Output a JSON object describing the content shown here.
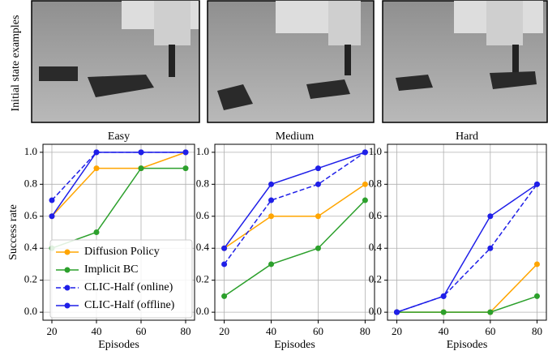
{
  "photos_label": "Initial state examples",
  "chart_data": [
    {
      "type": "line",
      "title": "Easy",
      "xlabel": "Episodes",
      "ylabel": "Success rate",
      "x": [
        20,
        40,
        60,
        80
      ],
      "xlim": [
        16,
        84
      ],
      "ylim": [
        -0.05,
        1.05
      ],
      "xticks": [
        20,
        40,
        60,
        80
      ],
      "yticks": [
        {
          "value": 0,
          "label": "0.0"
        },
        {
          "value": 0.2,
          "label": "0.2"
        },
        {
          "value": 0.4,
          "label": "0.4"
        },
        {
          "value": 0.6,
          "label": "0.6"
        },
        {
          "value": 0.8,
          "label": "0.8"
        },
        {
          "value": 1,
          "label": "1.0"
        }
      ],
      "grid": true,
      "legend": "lower right",
      "series": [
        {
          "name": "Diffusion Policy",
          "color": "#ffa500",
          "linestyle": "solid",
          "values": [
            0.6,
            0.9,
            0.9,
            1.0
          ]
        },
        {
          "name": "Implicit BC",
          "color": "#2ca02c",
          "linestyle": "solid",
          "values": [
            0.4,
            0.5,
            0.9,
            0.9
          ]
        },
        {
          "name": "CLIC-Half (online)",
          "color": "#1f1fe8",
          "linestyle": "dashed",
          "values": [
            0.7,
            1.0,
            1.0,
            1.0
          ]
        },
        {
          "name": "CLIC-Half (offline)",
          "color": "#1f1fe8",
          "linestyle": "solid",
          "values": [
            0.6,
            1.0,
            1.0,
            1.0
          ]
        }
      ]
    },
    {
      "type": "line",
      "title": "Medium",
      "xlabel": "Episodes",
      "x": [
        20,
        40,
        60,
        80
      ],
      "xlim": [
        16,
        84
      ],
      "ylim": [
        -0.05,
        1.05
      ],
      "xticks": [
        20,
        40,
        60,
        80
      ],
      "yticks": [
        {
          "value": 0,
          "label": "0.0"
        },
        {
          "value": 0.2,
          "label": "0.2"
        },
        {
          "value": 0.4,
          "label": "0.4"
        },
        {
          "value": 0.6,
          "label": "0.6"
        },
        {
          "value": 0.8,
          "label": "0.8"
        },
        {
          "value": 1,
          "label": "1.0"
        }
      ],
      "grid": true,
      "series": [
        {
          "name": "Diffusion Policy",
          "color": "#ffa500",
          "linestyle": "solid",
          "values": [
            0.4,
            0.6,
            0.6,
            0.8
          ]
        },
        {
          "name": "Implicit BC",
          "color": "#2ca02c",
          "linestyle": "solid",
          "values": [
            0.1,
            0.3,
            0.4,
            0.7
          ]
        },
        {
          "name": "CLIC-Half (online)",
          "color": "#1f1fe8",
          "linestyle": "dashed",
          "values": [
            0.3,
            0.7,
            0.8,
            1.0
          ]
        },
        {
          "name": "CLIC-Half (offline)",
          "color": "#1f1fe8",
          "linestyle": "solid",
          "values": [
            0.4,
            0.8,
            0.9,
            1.0
          ]
        }
      ]
    },
    {
      "type": "line",
      "title": "Hard",
      "xlabel": "Episodes",
      "x": [
        20,
        40,
        60,
        80
      ],
      "xlim": [
        16,
        84
      ],
      "ylim": [
        -0.05,
        1.05
      ],
      "xticks": [
        20,
        40,
        60,
        80
      ],
      "yticks": [
        {
          "value": 0,
          "label": "0.0"
        },
        {
          "value": 0.2,
          "label": "0.2"
        },
        {
          "value": 0.4,
          "label": "0.4"
        },
        {
          "value": 0.6,
          "label": "0.6"
        },
        {
          "value": 0.8,
          "label": "0.8"
        },
        {
          "value": 1,
          "label": "1.0"
        }
      ],
      "grid": true,
      "series": [
        {
          "name": "Diffusion Policy",
          "color": "#ffa500",
          "linestyle": "solid",
          "values": [
            0,
            0,
            0,
            0.3
          ]
        },
        {
          "name": "Implicit BC",
          "color": "#2ca02c",
          "linestyle": "solid",
          "values": [
            0,
            0,
            0,
            0.1
          ]
        },
        {
          "name": "CLIC-Half (online)",
          "color": "#1f1fe8",
          "linestyle": "dashed",
          "values": [
            0,
            0.1,
            0.4,
            0.8
          ]
        },
        {
          "name": "CLIC-Half (offline)",
          "color": "#1f1fe8",
          "linestyle": "solid",
          "values": [
            0,
            0.1,
            0.6,
            0.8
          ]
        }
      ]
    }
  ]
}
